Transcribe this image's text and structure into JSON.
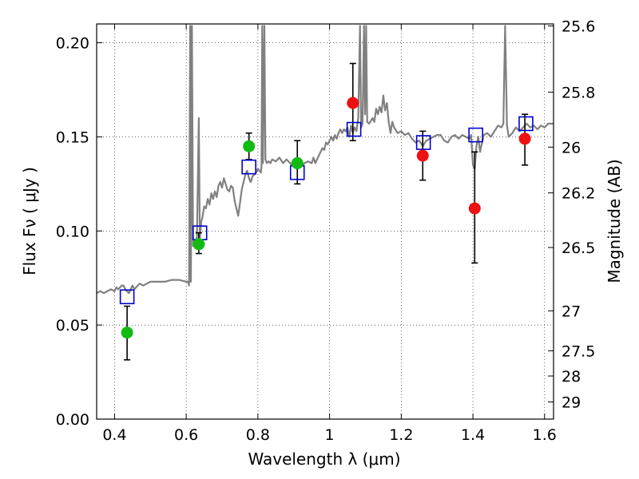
{
  "chart_data": {
    "type": "scatter",
    "xlabel": "Wavelength  λ (μm)",
    "ylabel": "Flux  Fν  ( μJy )",
    "y2label": "Magnitude (AB)",
    "xlim": [
      0.35,
      1.625
    ],
    "ylim": [
      0.0,
      0.21
    ],
    "grid": true,
    "x_ticks": [
      {
        "value": 0.4,
        "label": "0.4"
      },
      {
        "value": 0.6,
        "label": "0.6"
      },
      {
        "value": 0.8,
        "label": "0.8"
      },
      {
        "value": 1.0,
        "label": "1"
      },
      {
        "value": 1.2,
        "label": "1.2"
      },
      {
        "value": 1.4,
        "label": "1.4"
      },
      {
        "value": 1.6,
        "label": "1.6"
      }
    ],
    "y_ticks": [
      {
        "value": 0.0,
        "label": "0.00"
      },
      {
        "value": 0.05,
        "label": "0.05"
      },
      {
        "value": 0.1,
        "label": "0.10"
      },
      {
        "value": 0.15,
        "label": "0.15"
      },
      {
        "value": 0.2,
        "label": "0.20"
      }
    ],
    "y2_ticks": [
      {
        "value": 25.6,
        "label": "25.6"
      },
      {
        "value": 25.8,
        "label": "25.8"
      },
      {
        "value": 26.0,
        "label": "26"
      },
      {
        "value": 26.2,
        "label": "26.2"
      },
      {
        "value": 26.5,
        "label": "26.5"
      },
      {
        "value": 27.0,
        "label": "27"
      },
      {
        "value": 27.5,
        "label": "27.5"
      },
      {
        "value": 28.0,
        "label": "28"
      },
      {
        "value": 29.0,
        "label": "29"
      }
    ],
    "colors": {
      "green": "#11bb11",
      "red": "#ee1111",
      "model": "#0000cc",
      "spectrum": "#808080",
      "errorbar": "#000000"
    },
    "series": [
      {
        "marker": "circle",
        "color": "#11bb11",
        "points": [
          {
            "x": 0.435,
            "y": 0.046,
            "err": [
              0.0315,
              0.06
            ]
          },
          {
            "x": 0.635,
            "y": 0.093,
            "err": [
              0.088,
              0.099
            ]
          },
          {
            "x": 0.775,
            "y": 0.145,
            "err": [
              0.138,
              0.152
            ]
          },
          {
            "x": 0.91,
            "y": 0.136,
            "err": [
              0.125,
              0.148
            ]
          }
        ]
      },
      {
        "marker": "circle",
        "color": "#ee1111",
        "points": [
          {
            "x": 1.065,
            "y": 0.168,
            "err": [
              0.148,
              0.189
            ]
          },
          {
            "x": 1.26,
            "y": 0.14,
            "err": [
              0.127,
              0.153
            ]
          },
          {
            "x": 1.405,
            "y": 0.112,
            "err": [
              0.083,
              0.142
            ]
          },
          {
            "x": 1.545,
            "y": 0.149,
            "err": [
              0.135,
              0.162
            ]
          }
        ]
      },
      {
        "marker": "open-square",
        "color": "#0000cc",
        "points": [
          {
            "x": 0.435,
            "y": 0.065
          },
          {
            "x": 0.638,
            "y": 0.099
          },
          {
            "x": 0.775,
            "y": 0.134
          },
          {
            "x": 0.91,
            "y": 0.131
          },
          {
            "x": 1.068,
            "y": 0.154
          },
          {
            "x": 1.262,
            "y": 0.147
          },
          {
            "x": 1.408,
            "y": 0.151
          },
          {
            "x": 1.548,
            "y": 0.157
          }
        ]
      },
      {
        "marker": "line",
        "color": "#808080",
        "points": [
          [
            0.35,
            0.067
          ],
          [
            0.36,
            0.068
          ],
          [
            0.37,
            0.067
          ],
          [
            0.38,
            0.068
          ],
          [
            0.39,
            0.069
          ],
          [
            0.4,
            0.068
          ],
          [
            0.405,
            0.07
          ],
          [
            0.41,
            0.069
          ],
          [
            0.415,
            0.07
          ],
          [
            0.42,
            0.071
          ],
          [
            0.425,
            0.071
          ],
          [
            0.43,
            0.069
          ],
          [
            0.435,
            0.068
          ],
          [
            0.44,
            0.067
          ],
          [
            0.445,
            0.069
          ],
          [
            0.45,
            0.071
          ],
          [
            0.455,
            0.069
          ],
          [
            0.46,
            0.07
          ],
          [
            0.47,
            0.072
          ],
          [
            0.48,
            0.071
          ],
          [
            0.49,
            0.072
          ],
          [
            0.5,
            0.073
          ],
          [
            0.52,
            0.073
          ],
          [
            0.54,
            0.073
          ],
          [
            0.56,
            0.074
          ],
          [
            0.58,
            0.074
          ],
          [
            0.6,
            0.073
          ],
          [
            0.605,
            0.073
          ],
          [
            0.608,
            0.071
          ],
          [
            0.611,
            0.209
          ],
          [
            0.613,
            0.073
          ],
          [
            0.616,
            0.209
          ],
          [
            0.619,
            0.092
          ],
          [
            0.622,
            0.095
          ],
          [
            0.625,
            0.094
          ],
          [
            0.63,
            0.097
          ],
          [
            0.635,
            0.16
          ],
          [
            0.638,
            0.096
          ],
          [
            0.642,
            0.105
          ],
          [
            0.645,
            0.107
          ],
          [
            0.65,
            0.113
          ],
          [
            0.655,
            0.112
          ],
          [
            0.66,
            0.117
          ],
          [
            0.665,
            0.114
          ],
          [
            0.67,
            0.12
          ],
          [
            0.675,
            0.117
          ],
          [
            0.68,
            0.121
          ],
          [
            0.685,
            0.118
          ],
          [
            0.69,
            0.124
          ],
          [
            0.695,
            0.126
          ],
          [
            0.7,
            0.123
          ],
          [
            0.705,
            0.128
          ],
          [
            0.71,
            0.125
          ],
          [
            0.715,
            0.122
          ],
          [
            0.72,
            0.121
          ],
          [
            0.725,
            0.124
          ],
          [
            0.73,
            0.123
          ],
          [
            0.735,
            0.116
          ],
          [
            0.74,
            0.112
          ],
          [
            0.745,
            0.108
          ],
          [
            0.75,
            0.115
          ],
          [
            0.755,
            0.122
          ],
          [
            0.76,
            0.126
          ],
          [
            0.765,
            0.13
          ],
          [
            0.77,
            0.132
          ],
          [
            0.775,
            0.128
          ],
          [
            0.78,
            0.126
          ],
          [
            0.785,
            0.129
          ],
          [
            0.79,
            0.13
          ],
          [
            0.795,
            0.131
          ],
          [
            0.8,
            0.133
          ],
          [
            0.805,
            0.132
          ],
          [
            0.808,
            0.131
          ],
          [
            0.81,
            0.134
          ],
          [
            0.812,
            0.209
          ],
          [
            0.814,
            0.136
          ],
          [
            0.818,
            0.209
          ],
          [
            0.821,
            0.138
          ],
          [
            0.825,
            0.136
          ],
          [
            0.83,
            0.137
          ],
          [
            0.835,
            0.136
          ],
          [
            0.84,
            0.138
          ],
          [
            0.85,
            0.137
          ],
          [
            0.86,
            0.139
          ],
          [
            0.87,
            0.136
          ],
          [
            0.88,
            0.138
          ],
          [
            0.89,
            0.136
          ],
          [
            0.9,
            0.134
          ],
          [
            0.91,
            0.133
          ],
          [
            0.92,
            0.134
          ],
          [
            0.93,
            0.136
          ],
          [
            0.94,
            0.137
          ],
          [
            0.95,
            0.136
          ],
          [
            0.955,
            0.139
          ],
          [
            0.96,
            0.136
          ],
          [
            0.965,
            0.138
          ],
          [
            0.97,
            0.14
          ],
          [
            0.975,
            0.142
          ],
          [
            0.98,
            0.144
          ],
          [
            0.985,
            0.143
          ],
          [
            0.99,
            0.147
          ],
          [
            0.995,
            0.146
          ],
          [
            1.0,
            0.148
          ],
          [
            1.005,
            0.15
          ],
          [
            1.01,
            0.148
          ],
          [
            1.015,
            0.151
          ],
          [
            1.02,
            0.149
          ],
          [
            1.025,
            0.152
          ],
          [
            1.03,
            0.154
          ],
          [
            1.035,
            0.152
          ],
          [
            1.04,
            0.154
          ],
          [
            1.045,
            0.153
          ],
          [
            1.05,
            0.155
          ],
          [
            1.055,
            0.15
          ],
          [
            1.06,
            0.156
          ],
          [
            1.065,
            0.152
          ],
          [
            1.07,
            0.155
          ],
          [
            1.075,
            0.153
          ],
          [
            1.08,
            0.16
          ],
          [
            1.085,
            0.209
          ],
          [
            1.088,
            0.155
          ],
          [
            1.092,
            0.157
          ],
          [
            1.096,
            0.209
          ],
          [
            1.099,
            0.162
          ],
          [
            1.102,
            0.209
          ],
          [
            1.105,
            0.158
          ],
          [
            1.11,
            0.157
          ],
          [
            1.12,
            0.16
          ],
          [
            1.125,
            0.158
          ],
          [
            1.13,
            0.165
          ],
          [
            1.135,
            0.162
          ],
          [
            1.14,
            0.166
          ],
          [
            1.145,
            0.163
          ],
          [
            1.15,
            0.172
          ],
          [
            1.155,
            0.164
          ],
          [
            1.16,
            0.168
          ],
          [
            1.165,
            0.158
          ],
          [
            1.17,
            0.152
          ],
          [
            1.175,
            0.158
          ],
          [
            1.18,
            0.155
          ],
          [
            1.19,
            0.152
          ],
          [
            1.2,
            0.153
          ],
          [
            1.21,
            0.151
          ],
          [
            1.22,
            0.152
          ],
          [
            1.23,
            0.149
          ],
          [
            1.24,
            0.147
          ],
          [
            1.25,
            0.148
          ],
          [
            1.26,
            0.145
          ],
          [
            1.27,
            0.148
          ],
          [
            1.28,
            0.149
          ],
          [
            1.29,
            0.15
          ],
          [
            1.3,
            0.151
          ],
          [
            1.31,
            0.151
          ],
          [
            1.32,
            0.148
          ],
          [
            1.33,
            0.147
          ],
          [
            1.34,
            0.15
          ],
          [
            1.35,
            0.151
          ],
          [
            1.36,
            0.149
          ],
          [
            1.37,
            0.151
          ],
          [
            1.38,
            0.15
          ],
          [
            1.39,
            0.149
          ],
          [
            1.395,
            0.151
          ],
          [
            1.4,
            0.135
          ],
          [
            1.405,
            0.133
          ],
          [
            1.41,
            0.145
          ],
          [
            1.415,
            0.15
          ],
          [
            1.42,
            0.142
          ],
          [
            1.43,
            0.151
          ],
          [
            1.44,
            0.152
          ],
          [
            1.45,
            0.15
          ],
          [
            1.46,
            0.153
          ],
          [
            1.47,
            0.156
          ],
          [
            1.48,
            0.155
          ],
          [
            1.485,
            0.157
          ],
          [
            1.49,
            0.209
          ],
          [
            1.495,
            0.156
          ],
          [
            1.5,
            0.15
          ],
          [
            1.51,
            0.152
          ],
          [
            1.52,
            0.155
          ],
          [
            1.53,
            0.153
          ],
          [
            1.54,
            0.155
          ],
          [
            1.55,
            0.157
          ],
          [
            1.56,
            0.155
          ],
          [
            1.57,
            0.156
          ],
          [
            1.58,
            0.154
          ],
          [
            1.59,
            0.156
          ],
          [
            1.6,
            0.155
          ],
          [
            1.61,
            0.157
          ],
          [
            1.625,
            0.157
          ]
        ]
      }
    ]
  }
}
